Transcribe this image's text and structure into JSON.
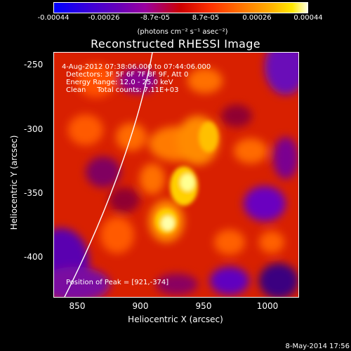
{
  "colorbar": {
    "ticks": [
      "-0.00044",
      "-0.00026",
      "-8.7e-05",
      "8.7e-05",
      "0.00026",
      "0.00044"
    ],
    "unit": "(photons cm⁻² s⁻¹ asec⁻²)"
  },
  "title": "Reconstructed RHESSI Image",
  "info": {
    "time_range": "4-Aug-2012 07:38:06.000 to 07:44:06.000",
    "detectors": "Detectors: 3F 5F 6F 7F 8F 9F, Att 0",
    "energy": "Energy Range: 12.0 - 25.0 keV",
    "counts": "Clean     Total counts: 7.11E+03",
    "peak": "Position of Peak = [921,-374]"
  },
  "axes": {
    "x_label": "Heliocentric X (arcsec)",
    "y_label": "Heliocentric Y (arcsec)",
    "x_ticks": [
      "850",
      "900",
      "950",
      "1000"
    ],
    "y_ticks": [
      "-250",
      "-300",
      "-350",
      "-400"
    ]
  },
  "stamp": "8-May-2014 17:56",
  "colors": {
    "background": "#000000",
    "colormap_low": "#0000ff",
    "colormap_mid": "#cc0000",
    "colormap_high": "#ffffe0",
    "limb_line": "#ffffff"
  }
}
